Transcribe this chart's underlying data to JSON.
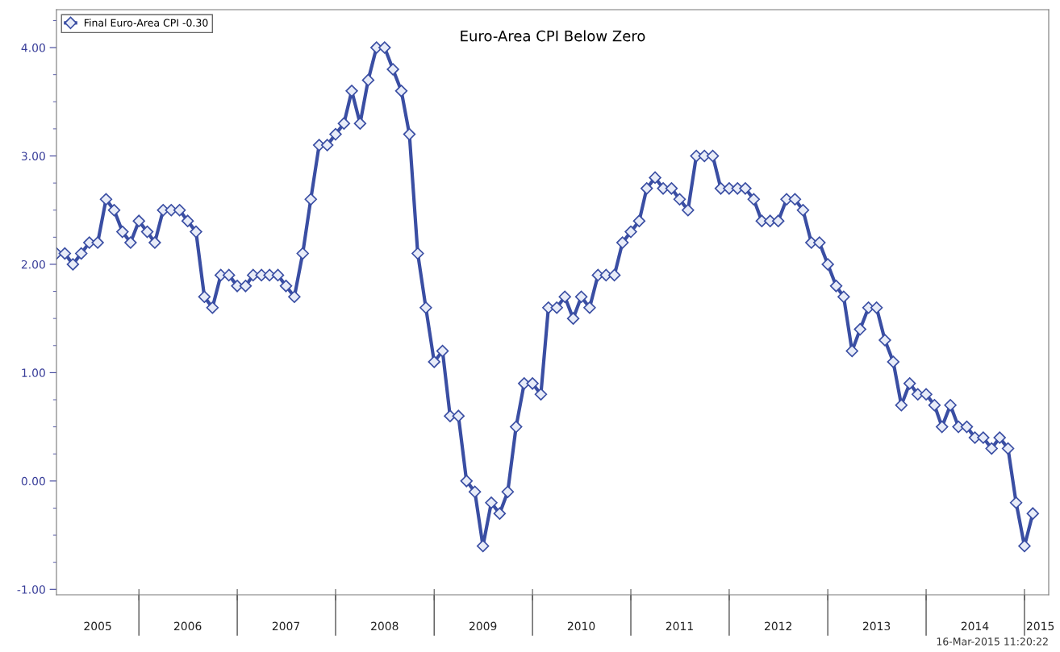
{
  "chart_data": {
    "type": "line",
    "title": "Euro-Area CPI Below Zero",
    "x": [
      "2005-03",
      "2005-04",
      "2005-05",
      "2005-06",
      "2005-07",
      "2005-08",
      "2005-09",
      "2005-10",
      "2005-11",
      "2005-12",
      "2006-01",
      "2006-02",
      "2006-03",
      "2006-04",
      "2006-05",
      "2006-06",
      "2006-07",
      "2006-08",
      "2006-09",
      "2006-10",
      "2006-11",
      "2006-12",
      "2007-01",
      "2007-02",
      "2007-03",
      "2007-04",
      "2007-05",
      "2007-06",
      "2007-07",
      "2007-08",
      "2007-09",
      "2007-10",
      "2007-11",
      "2007-12",
      "2008-01",
      "2008-02",
      "2008-03",
      "2008-04",
      "2008-05",
      "2008-06",
      "2008-07",
      "2008-08",
      "2008-09",
      "2008-10",
      "2008-11",
      "2008-12",
      "2009-01",
      "2009-02",
      "2009-03",
      "2009-04",
      "2009-05",
      "2009-06",
      "2009-07",
      "2009-08",
      "2009-09",
      "2009-10",
      "2009-11",
      "2009-12",
      "2010-01",
      "2010-02",
      "2010-03",
      "2010-04",
      "2010-05",
      "2010-06",
      "2010-07",
      "2010-08",
      "2010-09",
      "2010-10",
      "2010-11",
      "2010-12",
      "2011-01",
      "2011-02",
      "2011-03",
      "2011-04",
      "2011-05",
      "2011-06",
      "2011-07",
      "2011-08",
      "2011-09",
      "2011-10",
      "2011-11",
      "2011-12",
      "2012-01",
      "2012-02",
      "2012-03",
      "2012-04",
      "2012-05",
      "2012-06",
      "2012-07",
      "2012-08",
      "2012-09",
      "2012-10",
      "2012-11",
      "2012-12",
      "2013-01",
      "2013-02",
      "2013-03",
      "2013-04",
      "2013-05",
      "2013-06",
      "2013-07",
      "2013-08",
      "2013-09",
      "2013-10",
      "2013-11",
      "2013-12",
      "2014-01",
      "2014-02",
      "2014-03",
      "2014-04",
      "2014-05",
      "2014-06",
      "2014-07",
      "2014-08",
      "2014-09",
      "2014-10",
      "2014-11",
      "2014-12",
      "2015-01",
      "2015-02"
    ],
    "series": [
      {
        "name": "Final Euro-Area CPI -0.30",
        "color": "#3a4ea3",
        "values": [
          2.1,
          2.1,
          2.0,
          2.1,
          2.2,
          2.2,
          2.6,
          2.5,
          2.3,
          2.2,
          2.4,
          2.3,
          2.2,
          2.5,
          2.5,
          2.5,
          2.4,
          2.3,
          1.7,
          1.6,
          1.9,
          1.9,
          1.8,
          1.8,
          1.9,
          1.9,
          1.9,
          1.9,
          1.8,
          1.7,
          2.1,
          2.6,
          3.1,
          3.1,
          3.2,
          3.3,
          3.6,
          3.3,
          3.7,
          4.0,
          4.0,
          3.8,
          3.6,
          3.2,
          2.1,
          1.6,
          1.1,
          1.2,
          0.6,
          0.6,
          0.0,
          -0.1,
          -0.6,
          -0.2,
          -0.3,
          -0.1,
          0.5,
          0.9,
          0.9,
          0.8,
          1.6,
          1.6,
          1.7,
          1.5,
          1.7,
          1.6,
          1.9,
          1.9,
          1.9,
          2.2,
          2.3,
          2.4,
          2.7,
          2.8,
          2.7,
          2.7,
          2.6,
          2.5,
          3.0,
          3.0,
          3.0,
          2.7,
          2.7,
          2.7,
          2.7,
          2.6,
          2.4,
          2.4,
          2.4,
          2.6,
          2.6,
          2.5,
          2.2,
          2.2,
          2.0,
          1.8,
          1.7,
          1.2,
          1.4,
          1.6,
          1.6,
          1.3,
          1.1,
          0.7,
          0.9,
          0.8,
          0.8,
          0.7,
          0.5,
          0.7,
          0.5,
          0.5,
          0.4,
          0.4,
          0.3,
          0.4,
          0.3,
          -0.2,
          -0.6,
          -0.3
        ]
      }
    ],
    "marker": "diamond",
    "line_style": "solid",
    "legend": "top left",
    "grid": false,
    "xlim": [
      "2005-03",
      "2015-04"
    ],
    "xticks": [
      {
        "value": "2006-01",
        "label": null
      },
      {
        "value": "2007-01",
        "label": null
      },
      {
        "value": "2008-01",
        "label": null
      },
      {
        "value": "2009-01",
        "label": null
      },
      {
        "value": "2010-01",
        "label": null
      },
      {
        "value": "2011-01",
        "label": null
      },
      {
        "value": "2012-01",
        "label": null
      },
      {
        "value": "2013-01",
        "label": null
      },
      {
        "value": "2014-01",
        "label": null
      },
      {
        "value": "2015-01",
        "label": null
      },
      {
        "value": "2005-08-01",
        "label": "2005"
      },
      {
        "value": "2006-07-01",
        "label": "2006"
      },
      {
        "value": "2007-07-01",
        "label": "2007"
      },
      {
        "value": "2008-07-01",
        "label": "2008"
      },
      {
        "value": "2009-07-01",
        "label": "2009"
      },
      {
        "value": "2010-07-01",
        "label": "2010"
      },
      {
        "value": "2011-07-01",
        "label": "2011"
      },
      {
        "value": "2012-07-01",
        "label": "2012"
      },
      {
        "value": "2013-07-01",
        "label": "2013"
      },
      {
        "value": "2014-07-01",
        "label": "2014"
      },
      {
        "value": "2015-03-01",
        "label": "2015"
      }
    ],
    "ylim": [
      -1.05,
      4.35
    ],
    "yticks": [
      {
        "value": -1,
        "label": "-1.00"
      },
      {
        "value": 0,
        "label": "0.00"
      },
      {
        "value": 1,
        "label": "1.00"
      },
      {
        "value": 2,
        "label": "2.00"
      },
      {
        "value": 3,
        "label": "3.00"
      },
      {
        "value": 4,
        "label": "4.00"
      },
      {
        "value": -0.75,
        "label": null
      },
      {
        "value": -0.5,
        "label": null
      },
      {
        "value": -0.25,
        "label": null
      },
      {
        "value": 0.25,
        "label": null
      },
      {
        "value": 0.5,
        "label": null
      },
      {
        "value": 0.75,
        "label": null
      },
      {
        "value": 1.25,
        "label": null
      },
      {
        "value": 1.5,
        "label": null
      },
      {
        "value": 1.75,
        "label": null
      },
      {
        "value": 2.25,
        "label": null
      },
      {
        "value": 2.5,
        "label": null
      },
      {
        "value": 2.75,
        "label": null
      },
      {
        "value": 3.25,
        "label": null
      },
      {
        "value": 3.5,
        "label": null
      },
      {
        "value": 3.75,
        "label": null
      },
      {
        "value": 4.25,
        "label": null
      }
    ],
    "annotations": [
      "16-Mar-2015 11:20:22"
    ]
  }
}
